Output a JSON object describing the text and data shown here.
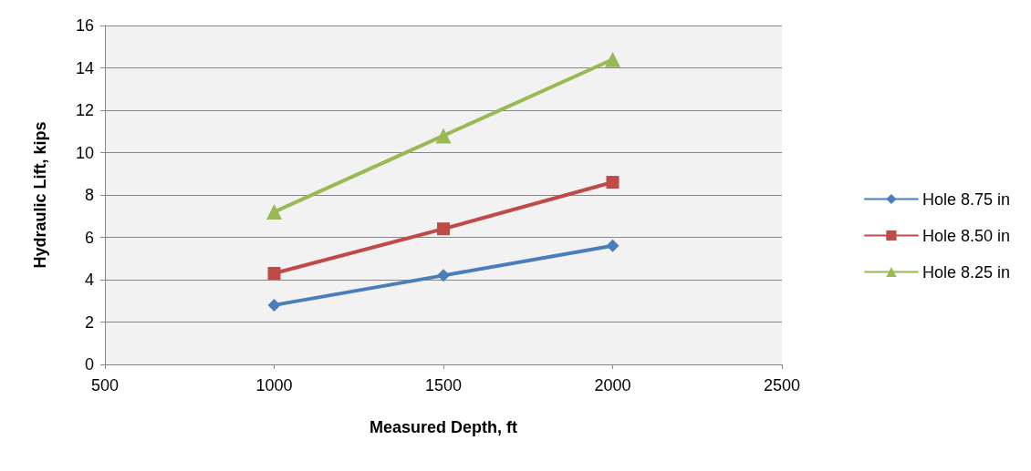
{
  "chart_data": {
    "type": "line",
    "xlabel": "Measured Depth, ft",
    "ylabel": "Hydraulic Lift, kips",
    "x": [
      1000,
      1500,
      2000
    ],
    "series": [
      {
        "name": "Hole 8.75 in",
        "color": "#4a7ebb",
        "marker": "diamond",
        "values": [
          2.8,
          4.2,
          5.6
        ]
      },
      {
        "name": "Hole 8.50 in",
        "color": "#be4b48",
        "marker": "square",
        "values": [
          4.3,
          6.4,
          8.6
        ]
      },
      {
        "name": "Hole 8.25 in",
        "color": "#98b954",
        "marker": "triangle",
        "values": [
          7.2,
          10.8,
          14.4
        ]
      }
    ],
    "xlim": [
      500,
      2500
    ],
    "xticks": [
      500,
      1000,
      1500,
      2000,
      2500
    ],
    "ylim": [
      0,
      16
    ],
    "yticks": [
      0,
      2,
      4,
      6,
      8,
      10,
      12,
      14,
      16
    ],
    "grid": "y",
    "legend": "right",
    "line_style": "solid"
  }
}
